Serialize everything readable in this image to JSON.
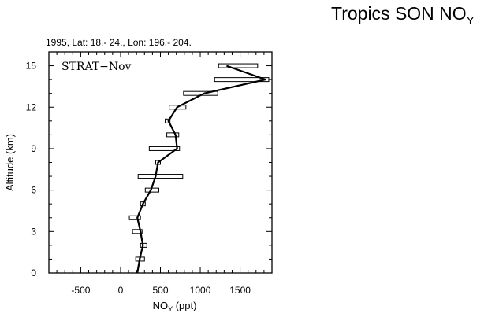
{
  "page": {
    "title_main": "Tropics SON NO",
    "title_sub": "Y",
    "top_label": "1995, Lat: 18.- 24., Lon: 196.- 204.",
    "panel_label": "STRAT−Nov",
    "xlabel_main": "NO",
    "xlabel_sub": "Y",
    "xlabel_unit": " (ppt)",
    "ylabel": "Altitude (km)"
  },
  "chart_data": {
    "type": "line",
    "title": "Tropics SON NOY",
    "subtitle": "1995, Lat: 18.- 24., Lon: 196.- 204.",
    "annotation": "STRAT−Nov",
    "xlabel": "NOY (ppt)",
    "ylabel": "Altitude (km)",
    "xlim": [
      -900,
      1900
    ],
    "ylim": [
      0,
      16
    ],
    "xticks": [
      -500,
      0,
      500,
      1000,
      1500
    ],
    "yticks": [
      0,
      3,
      6,
      9,
      12,
      15
    ],
    "grid": false,
    "series": [
      {
        "values": [
          {
            "y": 0,
            "x": 210
          },
          {
            "y": 1,
            "x": 240
          },
          {
            "y": 2,
            "x": 280
          },
          {
            "y": 3,
            "x": 250
          },
          {
            "y": 4,
            "x": 210
          },
          {
            "y": 5,
            "x": 280
          },
          {
            "y": 6,
            "x": 380
          },
          {
            "y": 7,
            "x": 440
          },
          {
            "y": 8,
            "x": 470
          },
          {
            "y": 9,
            "x": 710
          },
          {
            "y": 10,
            "x": 690
          },
          {
            "y": 11,
            "x": 600
          },
          {
            "y": 12,
            "x": 710
          },
          {
            "y": 13,
            "x": 1050
          },
          {
            "y": 14,
            "x": 1820
          },
          {
            "y": 15,
            "x": 1330
          }
        ]
      }
    ],
    "range_boxes": [
      {
        "y": 1,
        "x_min": 190,
        "x_max": 300
      },
      {
        "y": 2,
        "x_min": 250,
        "x_max": 330
      },
      {
        "y": 3,
        "x_min": 150,
        "x_max": 270
      },
      {
        "y": 4,
        "x_min": 110,
        "x_max": 250
      },
      {
        "y": 5,
        "x_min": 250,
        "x_max": 310
      },
      {
        "y": 6,
        "x_min": 310,
        "x_max": 480
      },
      {
        "y": 7,
        "x_min": 220,
        "x_max": 780
      },
      {
        "y": 8,
        "x_min": 440,
        "x_max": 500
      },
      {
        "y": 9,
        "x_min": 360,
        "x_max": 740
      },
      {
        "y": 10,
        "x_min": 580,
        "x_max": 730
      },
      {
        "y": 11,
        "x_min": 560,
        "x_max": 620
      },
      {
        "y": 12,
        "x_min": 610,
        "x_max": 820
      },
      {
        "y": 13,
        "x_min": 790,
        "x_max": 1220
      },
      {
        "y": 14,
        "x_min": 1180,
        "x_max": 1860
      },
      {
        "y": 15,
        "x_min": 1230,
        "x_max": 1720
      }
    ]
  }
}
